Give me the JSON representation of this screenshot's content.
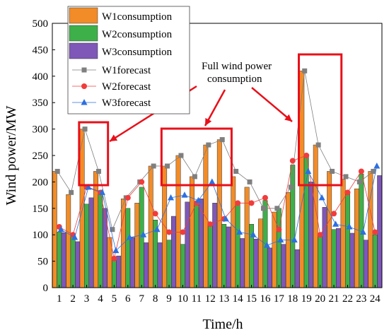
{
  "chart_data": {
    "type": "bar",
    "xlabel": "Time/h",
    "ylabel": "Wind power/MW",
    "ylim": [
      0,
      500
    ],
    "yticks": [
      0,
      50,
      100,
      150,
      200,
      250,
      300,
      350,
      400,
      450,
      500
    ],
    "categories": [
      "1",
      "2",
      "3",
      "4",
      "5",
      "6",
      "7",
      "8",
      "9",
      "10",
      "11",
      "12",
      "13",
      "14",
      "15",
      "16",
      "17",
      "18",
      "19",
      "20",
      "21",
      "22",
      "23",
      "24"
    ],
    "bar_series": [
      {
        "name": "W1consumption",
        "color": "#F28C28",
        "values": [
          220,
          176,
          300,
          220,
          95,
          168,
          160,
          230,
          230,
          250,
          210,
          270,
          280,
          210,
          190,
          130,
          143,
          180,
          410,
          270,
          220,
          205,
          187,
          220
        ]
      },
      {
        "name": "W2consumption",
        "color": "#3EB049",
        "values": [
          105,
          97,
          158,
          183,
          55,
          150,
          190,
          128,
          90,
          82,
          160,
          120,
          120,
          160,
          120,
          165,
          150,
          232,
          250,
          100,
          110,
          180,
          215,
          100
        ]
      },
      {
        "name": "W3consumption",
        "color": "#7E57B8",
        "values": [
          104,
          87,
          170,
          150,
          60,
          95,
          85,
          85,
          135,
          162,
          168,
          160,
          115,
          93,
          92,
          75,
          82,
          72,
          200,
          152,
          112,
          103,
          90,
          212
        ]
      }
    ],
    "line_series": [
      {
        "name": "W1forecast",
        "color": "#7F7F7F",
        "marker": "square",
        "values": [
          220,
          180,
          300,
          220,
          110,
          170,
          200,
          230,
          230,
          250,
          210,
          270,
          280,
          220,
          200,
          150,
          150,
          190,
          410,
          270,
          220,
          210,
          200,
          220
        ]
      },
      {
        "name": "W2forecast",
        "color": "#F03C3C",
        "marker": "circle",
        "values": [
          115,
          100,
          190,
          180,
          55,
          170,
          200,
          140,
          105,
          105,
          160,
          120,
          130,
          160,
          160,
          170,
          110,
          240,
          250,
          100,
          140,
          180,
          220,
          105
        ]
      },
      {
        "name": "W3forecast",
        "color": "#2C6FE0",
        "marker": "triangle",
        "values": [
          110,
          95,
          190,
          180,
          70,
          95,
          100,
          110,
          170,
          175,
          165,
          200,
          130,
          105,
          100,
          80,
          90,
          90,
          220,
          170,
          120,
          115,
          105,
          230
        ]
      }
    ],
    "annotation": {
      "text_line1": "Full wind power",
      "text_line2": "consumption",
      "color": "#E8101A"
    },
    "highlight_boxes_hours": [
      [
        3,
        4
      ],
      [
        9,
        13
      ],
      [
        19,
        21
      ]
    ],
    "legend_position": "top-left"
  }
}
